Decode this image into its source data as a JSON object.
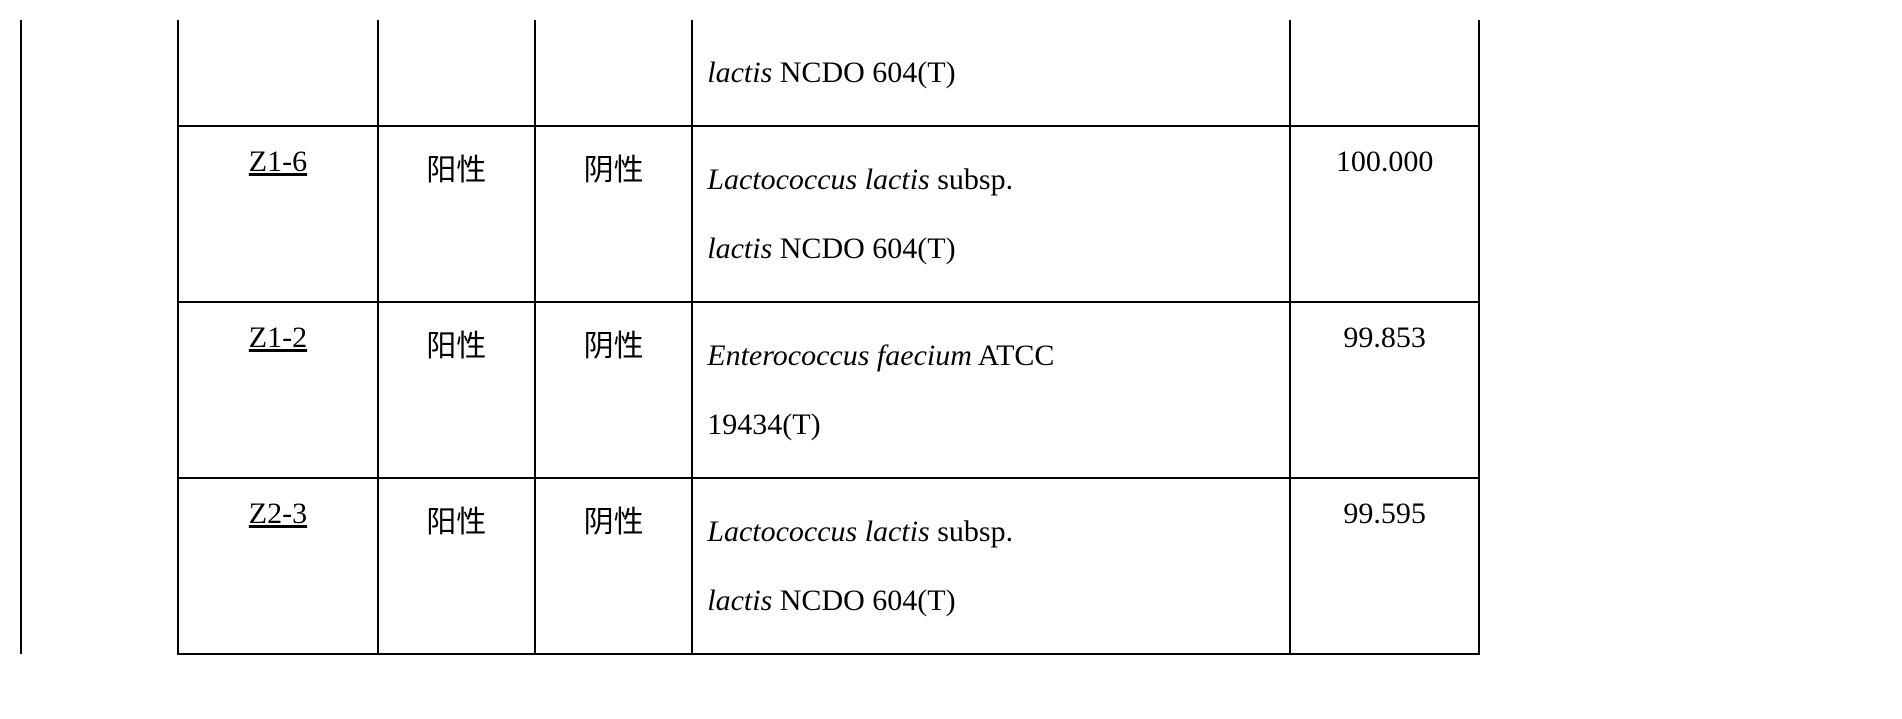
{
  "table": {
    "border_color": "#000000",
    "background_color": "#ffffff",
    "font_family": "Times New Roman",
    "base_fontsize": 30,
    "rows": [
      {
        "c1": "",
        "c2": "",
        "c3": "",
        "c4": "",
        "c5_italic_part_a": "lactis",
        "c5_rest_a": " NCDO 604(T)",
        "c6": ""
      },
      {
        "c2": "Z1-6",
        "c3": "阳性",
        "c4": "阴性",
        "c5_italic_part_a": "Lactococcus lactis",
        "c5_mid_a": " subsp.",
        "c5_italic_part_b": "lactis",
        "c5_rest_b": " NCDO 604(T)",
        "c6": "100.000"
      },
      {
        "c2": "Z1-2",
        "c3": "阳性",
        "c4": "阴性",
        "c5_italic_part_a": "Enterococcus faecium",
        "c5_mid_a": " ATCC",
        "c5_rest_b": "19434(T)",
        "c6": "99.853"
      },
      {
        "c2": "Z2-3",
        "c3": "阳性",
        "c4": "阴性",
        "c5_italic_part_a": "Lactococcus lactis",
        "c5_mid_a": " subsp.",
        "c5_italic_part_b": "lactis",
        "c5_rest_b": " NCDO 604(T)",
        "c6": "99.595"
      }
    ]
  }
}
